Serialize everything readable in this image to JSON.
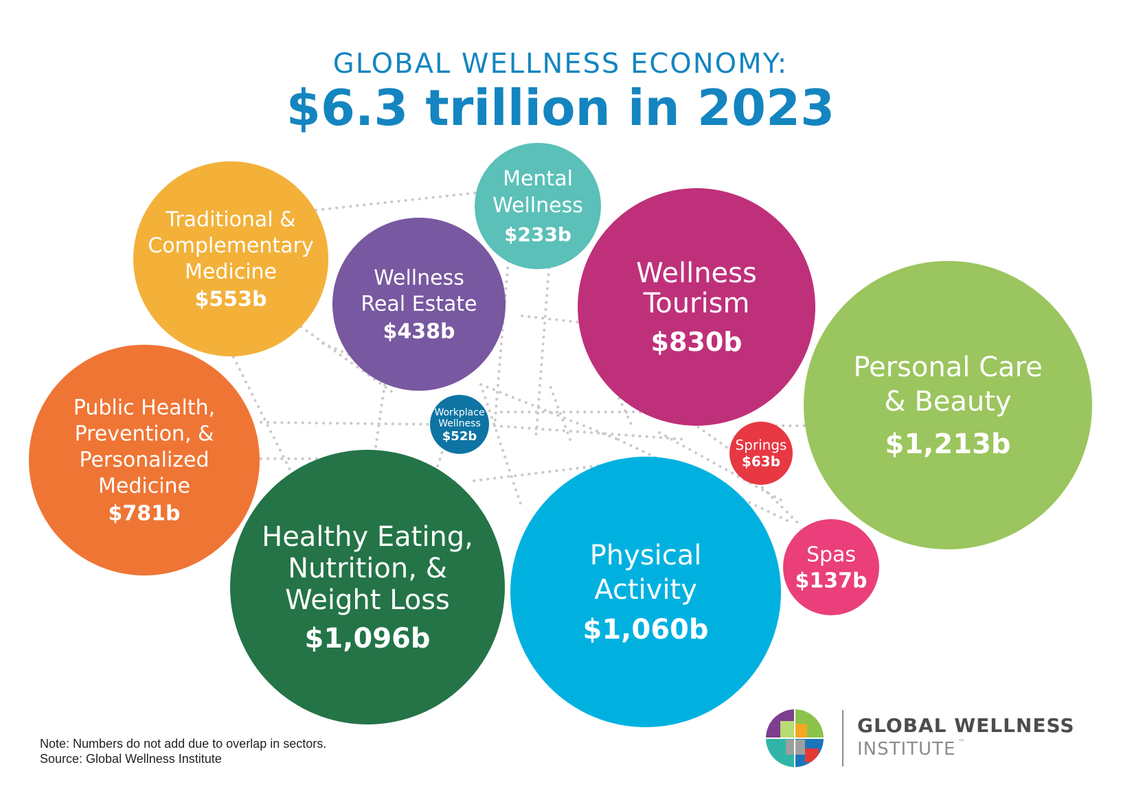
{
  "header": {
    "subtitle": "GLOBAL WELLNESS ECONOMY:",
    "title": "$6.3 trillion in 2023"
  },
  "chart_data": {
    "type": "bubble",
    "title": "$6.3 trillion in 2023",
    "subtitle": "GLOBAL WELLNESS ECONOMY:",
    "unit": "billion USD",
    "series": [
      {
        "name": "Personal Care & Beauty",
        "label_lines": [
          "Personal Care",
          "& Beauty"
        ],
        "value": 1213,
        "value_label": "$1,213b",
        "color": "#9bc55e"
      },
      {
        "name": "Healthy Eating, Nutrition, & Weight Loss",
        "label_lines": [
          "Healthy Eating,",
          "Nutrition, &",
          "Weight Loss"
        ],
        "value": 1096,
        "value_label": "$1,096b",
        "color": "#247447"
      },
      {
        "name": "Physical Activity",
        "label_lines": [
          "Physical",
          "Activity"
        ],
        "value": 1060,
        "value_label": "$1,060b",
        "color": "#00b1e0"
      },
      {
        "name": "Wellness Tourism",
        "label_lines": [
          "Wellness",
          "Tourism"
        ],
        "value": 830,
        "value_label": "$830b",
        "color": "#bf307a"
      },
      {
        "name": "Public Health, Prevention, & Personalized Medicine",
        "label_lines": [
          "Public Health,",
          "Prevention, &",
          "Personalized",
          "Medicine"
        ],
        "value": 781,
        "value_label": "$781b",
        "color": "#ef7535"
      },
      {
        "name": "Traditional & Complementary Medicine",
        "label_lines": [
          "Traditional &",
          "Complementary",
          "Medicine"
        ],
        "value": 553,
        "value_label": "$553b",
        "color": "#f3b13a"
      },
      {
        "name": "Wellness Real Estate",
        "label_lines": [
          "Wellness",
          "Real Estate"
        ],
        "value": 438,
        "value_label": "$438b",
        "color": "#7858a0"
      },
      {
        "name": "Mental Wellness",
        "label_lines": [
          "Mental",
          "Wellness"
        ],
        "value": 233,
        "value_label": "$233b",
        "color": "#5bc0b8"
      },
      {
        "name": "Spas",
        "label_lines": [
          "Spas"
        ],
        "value": 137,
        "value_label": "$137b",
        "color": "#ea3f7a"
      },
      {
        "name": "Springs",
        "label_lines": [
          "Springs"
        ],
        "value": 63,
        "value_label": "$63b",
        "color": "#e73843"
      },
      {
        "name": "Workplace Wellness",
        "label_lines": [
          "Workplace",
          "Wellness"
        ],
        "value": 52,
        "value_label": "$52b",
        "color": "#0e74a3"
      }
    ],
    "connector_style": "dotted-gray"
  },
  "footer": {
    "note": "Note: Numbers do not add due to overlap in sectors.",
    "source": "Source: Global Wellness Institute"
  },
  "logo": {
    "line1": "GLOBAL WELLNESS",
    "line2": "INSTITUTE",
    "tm": "™"
  }
}
